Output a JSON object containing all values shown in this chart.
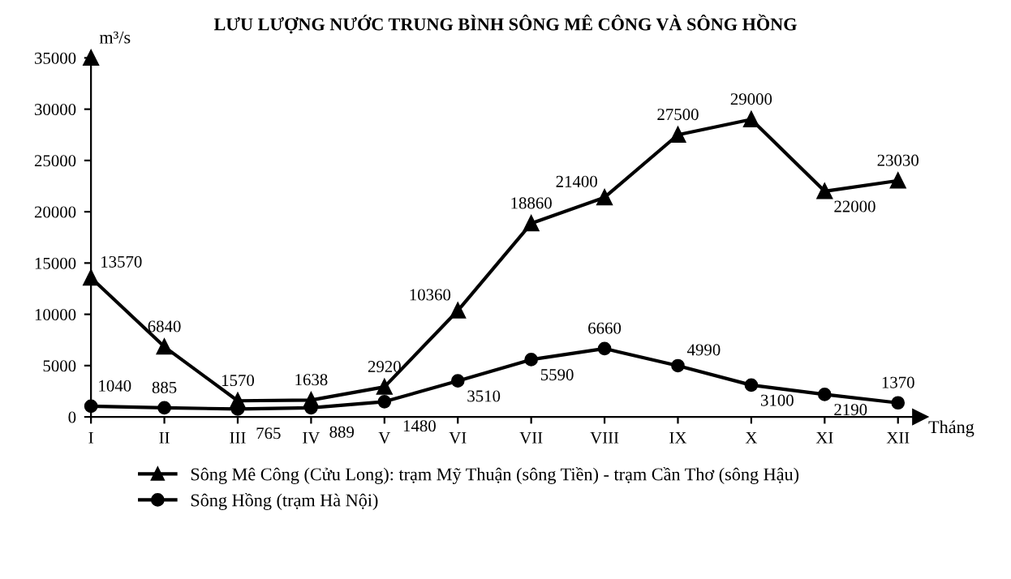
{
  "chart_data": {
    "type": "line",
    "title": "LƯU LƯỢNG NƯỚC TRUNG BÌNH SÔNG MÊ CÔNG VÀ SÔNG HỒNG",
    "xlabel": "Tháng",
    "ylabel": "m³/s",
    "categories": [
      "I",
      "II",
      "III",
      "IV",
      "V",
      "VI",
      "VII",
      "VIII",
      "IX",
      "X",
      "XI",
      "XII"
    ],
    "series": [
      {
        "name": "Sông Mê Công (Cửu Long): trạm Mỹ Thuận (sông Tiền) - trạm Cần Thơ (sông Hậu)",
        "color": "#000000",
        "marker": "triangle",
        "values": [
          13570,
          6840,
          1570,
          1638,
          2920,
          10360,
          18860,
          21400,
          27500,
          29000,
          22000,
          23030
        ]
      },
      {
        "name": "Sông Hồng (trạm Hà Nội)",
        "color": "#000000",
        "marker": "circle",
        "values": [
          1040,
          885,
          765,
          889,
          1480,
          3510,
          5590,
          6660,
          4990,
          3100,
          2190,
          1370
        ]
      }
    ],
    "ylim": [
      0,
      35000
    ],
    "yticks": [
      0,
      5000,
      10000,
      15000,
      20000,
      25000,
      30000,
      35000
    ],
    "grid": false,
    "legend": "bottom",
    "line_style": "solid",
    "data_labels": true
  }
}
